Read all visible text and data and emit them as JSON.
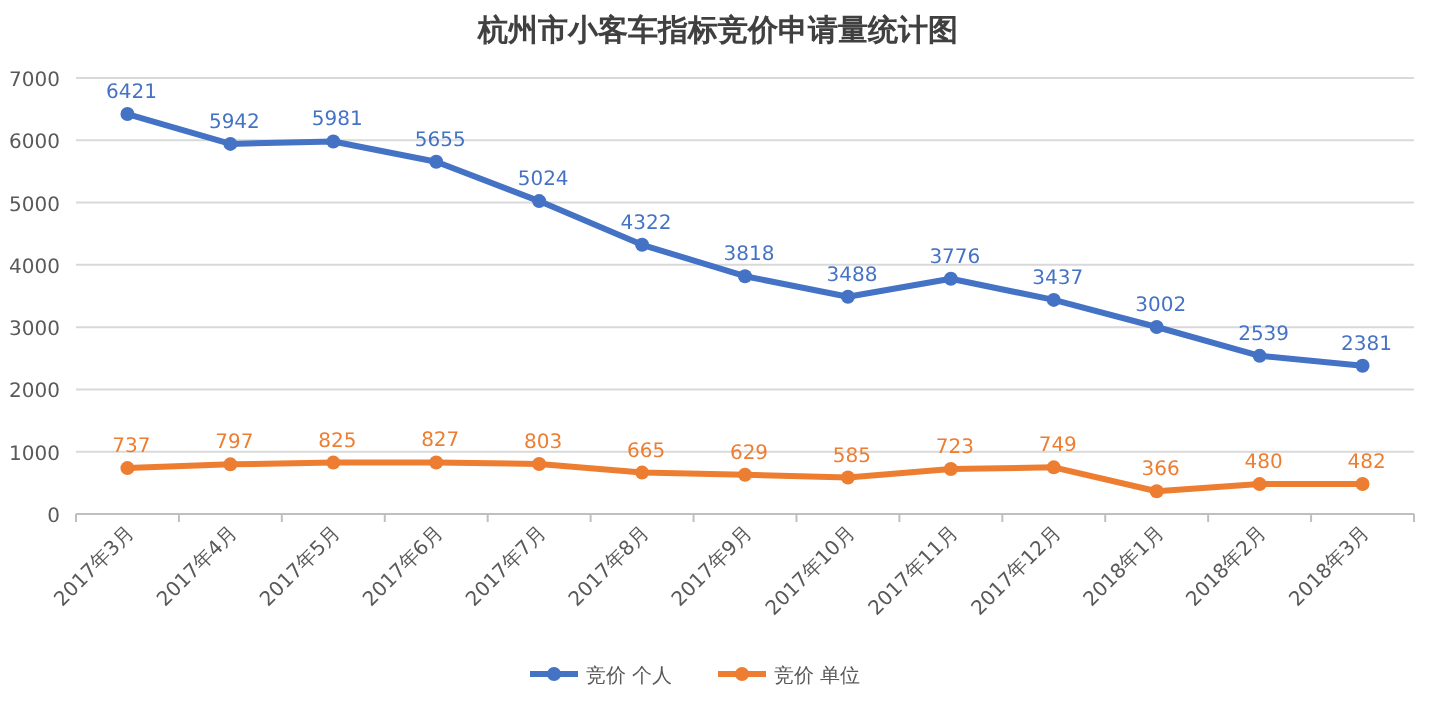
{
  "chart_data": {
    "type": "line",
    "title": "杭州市小客车指标竞价申请量统计图",
    "categories": [
      "2017年3月",
      "2017年4月",
      "2017年5月",
      "2017年6月",
      "2017年7月",
      "2017年8月",
      "2017年9月",
      "2017年10月",
      "2017年11月",
      "2017年12月",
      "2018年1月",
      "2018年2月",
      "2018年3月"
    ],
    "series": [
      {
        "name": "竞价 个人",
        "color": "#4472c4",
        "values": [
          6421,
          5942,
          5981,
          5655,
          5024,
          4322,
          3818,
          3488,
          3776,
          3437,
          3002,
          2539,
          2381
        ]
      },
      {
        "name": "竞价 单位",
        "color": "#ed7d31",
        "values": [
          737,
          797,
          825,
          827,
          803,
          665,
          629,
          585,
          723,
          749,
          366,
          480,
          482
        ]
      }
    ],
    "ylim": [
      0,
      7000
    ],
    "yticks": [
      0,
      1000,
      2000,
      3000,
      4000,
      5000,
      6000,
      7000
    ],
    "grid": "y",
    "legend": "bottom",
    "marker": "circle",
    "data_labels": true
  }
}
